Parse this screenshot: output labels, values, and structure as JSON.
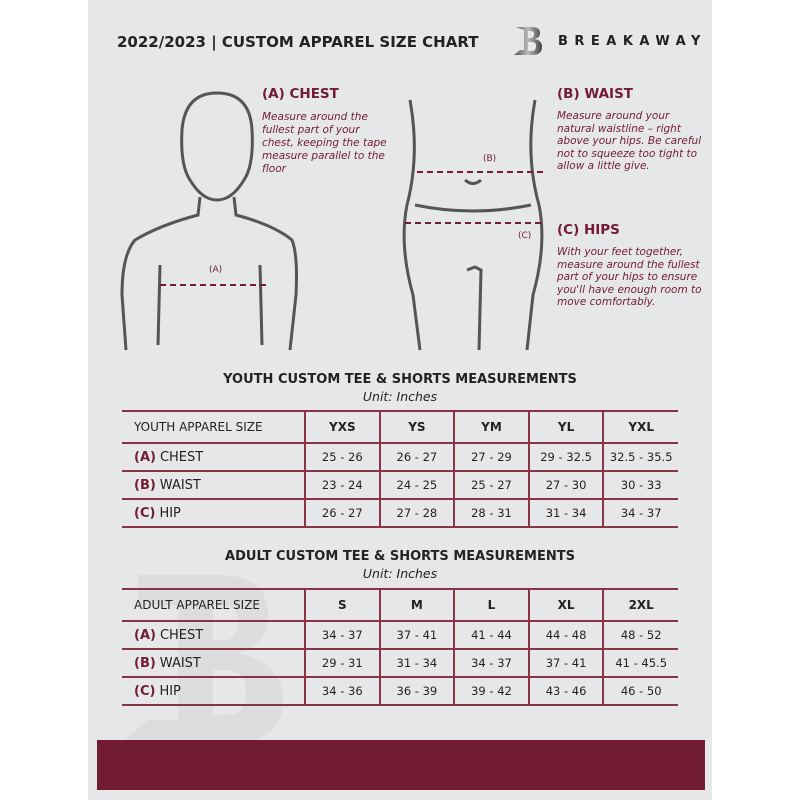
{
  "header": {
    "title": "2022/2023  |  CUSTOM APPAREL SIZE CHART",
    "brand": "BREAKAWAY",
    "logo_letter": "B"
  },
  "measurements": {
    "chest": {
      "heading": "(A) CHEST",
      "marker": "(A)",
      "description": "Measure around the fullest part of your chest, keeping the tape measure parallel to the floor"
    },
    "waist": {
      "heading": "(B) WAIST",
      "marker": "(B)",
      "description": "Measure around your natural waistline – right above your hips. Be careful not to squeeze too tight to allow a little give."
    },
    "hips": {
      "heading": "(C) HIPS",
      "marker": "(C)",
      "description": "With your feet together, measure around the fullest part of your hips to ensure you'll have enough room to move comfortably."
    }
  },
  "youth": {
    "title": "YOUTH CUSTOM TEE & SHORTS MEASUREMENTS",
    "unit": "Unit: Inches",
    "header": [
      "YOUTH APPAREL SIZE",
      "YXS",
      "YS",
      "YM",
      "YL",
      "YXL"
    ],
    "rows": [
      {
        "label": "(A)",
        "name": "CHEST",
        "values": [
          "25 - 26",
          "26 - 27",
          "27 - 29",
          "29 - 32.5",
          "32.5 - 35.5"
        ]
      },
      {
        "label": "(B)",
        "name": "WAIST",
        "values": [
          "23 - 24",
          "24 - 25",
          "25 - 27",
          "27 - 30",
          "30 - 33"
        ]
      },
      {
        "label": "(C)",
        "name": "HIP",
        "values": [
          "26 - 27",
          "27 - 28",
          "28 - 31",
          "31 - 34",
          "34 - 37"
        ]
      }
    ]
  },
  "adult": {
    "title": "ADULT CUSTOM TEE & SHORTS MEASUREMENTS",
    "unit": "Unit: Inches",
    "header": [
      "ADULT APPAREL SIZE",
      "S",
      "M",
      "L",
      "XL",
      "2XL"
    ],
    "rows": [
      {
        "label": "(A)",
        "name": "CHEST",
        "values": [
          "34 - 37",
          "37 - 41",
          "41 - 44",
          "44 - 48",
          "48 - 52"
        ]
      },
      {
        "label": "(B)",
        "name": "WAIST",
        "values": [
          "29 - 31",
          "31 - 34",
          "34 - 37",
          "37 - 41",
          "41 - 45.5"
        ]
      },
      {
        "label": "(C)",
        "name": "HIP",
        "values": [
          "34 - 36",
          "36 - 39",
          "39 - 42",
          "43 - 46",
          "46 - 50"
        ]
      }
    ]
  },
  "colors": {
    "accent": "#721c33",
    "background": "#e6e7e8"
  }
}
